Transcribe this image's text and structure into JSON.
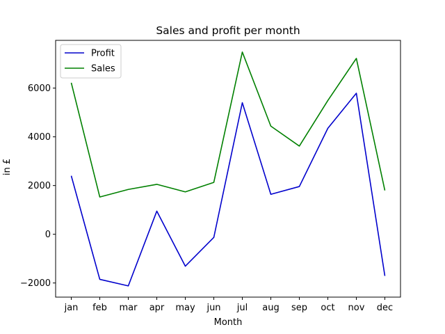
{
  "chart_data": {
    "type": "line",
    "title": "Sales and profit per month",
    "xlabel": "Month",
    "ylabel": "in £",
    "categories": [
      "jan",
      "feb",
      "mar",
      "apr",
      "may",
      "jun",
      "jul",
      "aug",
      "sep",
      "oct",
      "nov",
      "dec"
    ],
    "series": [
      {
        "name": "Profit",
        "color": "#0000cc",
        "values": [
          2400,
          -1850,
          -2120,
          950,
          -1310,
          -130,
          5400,
          1640,
          1960,
          4350,
          5790,
          -1710
        ]
      },
      {
        "name": "Sales",
        "color": "#008000",
        "values": [
          6220,
          1530,
          1840,
          2050,
          1740,
          2130,
          7480,
          4440,
          3620,
          5490,
          7220,
          1800
        ]
      }
    ],
    "ylim": [
      -2580,
      7960
    ],
    "yticks": [
      -2000,
      0,
      2000,
      4000,
      6000
    ],
    "yticks_text": [
      "−2000",
      "0",
      "2000",
      "4000",
      "6000"
    ],
    "grid": false,
    "legend_position": "top-left"
  }
}
